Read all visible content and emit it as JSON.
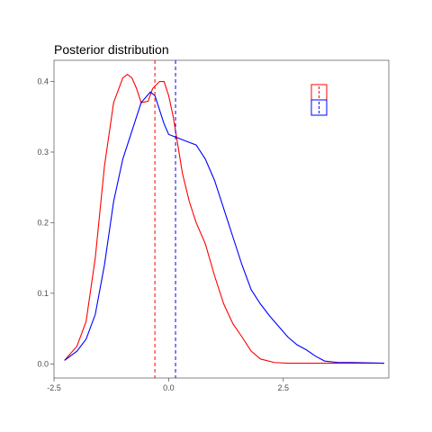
{
  "chart_data": {
    "type": "line",
    "title": "Posterior distribution",
    "xlabel": "",
    "ylabel": "",
    "xlim": [
      -2.5,
      4.8
    ],
    "ylim": [
      -0.02,
      0.43
    ],
    "xticks": [
      -2.5,
      0.0,
      2.5
    ],
    "xtick_labels": [
      "-2.5",
      "0.0",
      "2.5"
    ],
    "yticks": [
      0.0,
      0.1,
      0.2,
      0.3,
      0.4
    ],
    "ytick_labels": [
      "0.0",
      "0.1",
      "0.2",
      "0.3",
      "0.4"
    ],
    "grid": false,
    "legend_position": "top-right",
    "series": [
      {
        "color": "#ff0000",
        "x": [
          -2.27,
          -2.0,
          -1.8,
          -1.6,
          -1.4,
          -1.2,
          -1.0,
          -0.9,
          -0.8,
          -0.7,
          -0.6,
          -0.45,
          -0.35,
          -0.2,
          -0.1,
          0.0,
          0.1,
          0.2,
          0.3,
          0.45,
          0.6,
          0.8,
          1.0,
          1.2,
          1.4,
          1.6,
          1.8,
          2.0,
          2.3,
          2.6,
          3.0,
          3.5,
          4.0,
          4.7
        ],
        "values": [
          0.005,
          0.025,
          0.06,
          0.15,
          0.28,
          0.37,
          0.405,
          0.41,
          0.405,
          0.39,
          0.37,
          0.372,
          0.39,
          0.4,
          0.4,
          0.38,
          0.35,
          0.31,
          0.27,
          0.23,
          0.2,
          0.17,
          0.125,
          0.085,
          0.057,
          0.038,
          0.018,
          0.007,
          0.002,
          0.001,
          0.001,
          0.001,
          0.001,
          0.001
        ]
      },
      {
        "color": "#0000ff",
        "x": [
          -2.27,
          -2.0,
          -1.8,
          -1.6,
          -1.4,
          -1.2,
          -1.0,
          -0.8,
          -0.6,
          -0.4,
          -0.3,
          -0.2,
          -0.1,
          0.0,
          0.2,
          0.4,
          0.6,
          0.8,
          1.0,
          1.2,
          1.4,
          1.6,
          1.8,
          2.0,
          2.2,
          2.4,
          2.6,
          2.8,
          3.0,
          3.2,
          3.4,
          3.7,
          4.0,
          4.7
        ],
        "values": [
          0.005,
          0.018,
          0.035,
          0.07,
          0.14,
          0.23,
          0.29,
          0.33,
          0.37,
          0.385,
          0.38,
          0.36,
          0.34,
          0.325,
          0.32,
          0.315,
          0.31,
          0.29,
          0.26,
          0.22,
          0.18,
          0.14,
          0.105,
          0.085,
          0.068,
          0.053,
          0.038,
          0.027,
          0.02,
          0.011,
          0.004,
          0.002,
          0.002,
          0.001
        ]
      }
    ],
    "vlines": [
      {
        "x": -0.3,
        "color": "#ff0000",
        "style": "dashed"
      },
      {
        "x": 0.15,
        "color": "#0000ff",
        "style": "dashed"
      }
    ]
  }
}
